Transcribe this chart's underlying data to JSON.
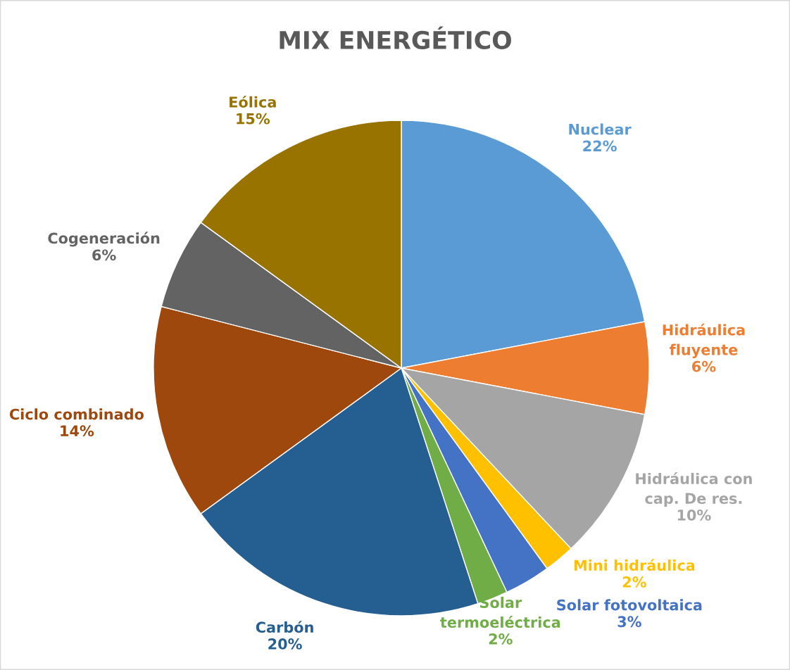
{
  "chart_data": {
    "type": "pie",
    "title": "MIX ENERGÉTICO",
    "categories": [
      "Nuclear",
      "Hidráulica fluyente",
      "Hidráulica con cap. De res.",
      "Mini hidráulica",
      "Solar fotovoltaica",
      "Solar termoeléctrica",
      "Carbón",
      "Ciclo combinado",
      "Cogeneración",
      "Eólica"
    ],
    "values": [
      22,
      6,
      10,
      2,
      3,
      2,
      20,
      14,
      6,
      15
    ],
    "colors": [
      "#5b9bd5",
      "#ed7d31",
      "#a5a5a5",
      "#ffc000",
      "#4472c4",
      "#70ad47",
      "#255e91",
      "#9e480e",
      "#636363",
      "#997300"
    ],
    "value_labels": [
      "22%",
      "6%",
      "10%",
      "2%",
      "3%",
      "2%",
      "20%",
      "14%",
      "6%",
      "15%"
    ]
  }
}
